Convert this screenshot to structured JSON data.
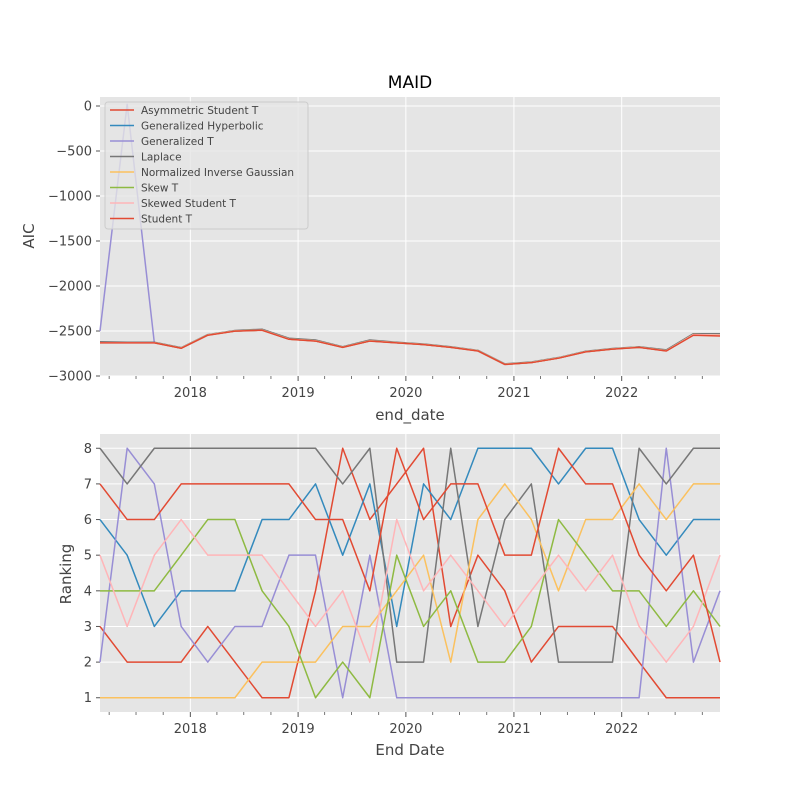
{
  "chart_data": [
    {
      "type": "line",
      "title": "MAID",
      "xlabel": "end_date",
      "ylabel": "AIC",
      "ylim": [
        -3000,
        100
      ],
      "xlim": [
        "2017-03-01",
        "2022-11-30"
      ],
      "x_ticks": [
        {
          "date": "2018-01-01",
          "label": "2018"
        },
        {
          "date": "2019-01-01",
          "label": "2019"
        },
        {
          "date": "2020-01-01",
          "label": "2020"
        },
        {
          "date": "2021-01-01",
          "label": "2021"
        },
        {
          "date": "2022-01-01",
          "label": "2022"
        }
      ],
      "y_ticks": [
        {
          "value": 0,
          "label": "0"
        },
        {
          "value": -500,
          "label": "−500"
        },
        {
          "value": -1000,
          "label": "−1000"
        },
        {
          "value": -1500,
          "label": "−1500"
        },
        {
          "value": -2000,
          "label": "−2000"
        },
        {
          "value": -2500,
          "label": "−2500"
        },
        {
          "value": -3000,
          "label": "−3000"
        }
      ],
      "grid": true,
      "legend_position": "top-left",
      "x": [
        "2017-03-01",
        "2017-06-01",
        "2017-09-01",
        "2017-12-01",
        "2018-03-01",
        "2018-06-01",
        "2018-09-01",
        "2018-12-01",
        "2019-03-01",
        "2019-06-01",
        "2019-09-01",
        "2019-12-01",
        "2020-03-01",
        "2020-06-01",
        "2020-09-01",
        "2020-12-01",
        "2021-03-01",
        "2021-06-01",
        "2021-09-01",
        "2021-12-01",
        "2022-03-01",
        "2022-06-01",
        "2022-09-01",
        "2022-11-30"
      ],
      "series": [
        {
          "name": "Asymmetric Student T",
          "color": "#e24a33",
          "values": [
            -2630,
            -2630,
            -2630,
            -2690,
            -2545,
            -2500,
            -2490,
            -2590,
            -2610,
            -2680,
            -2610,
            -2630,
            -2650,
            -2680,
            -2720,
            -2870,
            -2850,
            -2800,
            -2730,
            -2700,
            -2680,
            -2720,
            -2540,
            -2545
          ]
        },
        {
          "name": "Generalized Hyperbolic",
          "color": "#348abd",
          "values": [
            -2630,
            -2630,
            -2630,
            -2690,
            -2545,
            -2500,
            -2490,
            -2590,
            -2610,
            -2680,
            -2610,
            -2630,
            -2650,
            -2680,
            -2720,
            -2870,
            -2850,
            -2800,
            -2730,
            -2700,
            -2680,
            -2720,
            -2540,
            -2545
          ]
        },
        {
          "name": "Generalized T",
          "color": "#988ed5",
          "values": [
            -2500,
            20,
            -2630,
            -2690,
            -2545,
            -2500,
            -2490,
            -2590,
            -2610,
            -2680,
            -2610,
            -2630,
            -2650,
            -2680,
            -2720,
            -2870,
            -2850,
            -2800,
            -2730,
            -2700,
            -2680,
            -2720,
            -2540,
            -2545
          ]
        },
        {
          "name": "Laplace",
          "color": "#777777",
          "values": [
            -2620,
            -2625,
            -2625,
            -2685,
            -2540,
            -2495,
            -2480,
            -2580,
            -2600,
            -2675,
            -2600,
            -2625,
            -2645,
            -2675,
            -2715,
            -2865,
            -2845,
            -2795,
            -2725,
            -2695,
            -2675,
            -2710,
            -2530,
            -2530
          ]
        },
        {
          "name": "Normalized Inverse Gaussian",
          "color": "#fbc15e",
          "values": [
            -2630,
            -2630,
            -2630,
            -2690,
            -2545,
            -2500,
            -2490,
            -2590,
            -2610,
            -2680,
            -2610,
            -2630,
            -2650,
            -2680,
            -2720,
            -2870,
            -2850,
            -2800,
            -2730,
            -2700,
            -2680,
            -2720,
            -2540,
            -2545
          ]
        },
        {
          "name": "Skew T",
          "color": "#8eba42",
          "values": [
            -2630,
            -2630,
            -2630,
            -2690,
            -2545,
            -2500,
            -2490,
            -2590,
            -2610,
            -2680,
            -2610,
            -2630,
            -2650,
            -2680,
            -2720,
            -2870,
            -2850,
            -2800,
            -2730,
            -2700,
            -2680,
            -2720,
            -2540,
            -2545
          ]
        },
        {
          "name": "Skewed Student T",
          "color": "#ffb5b8",
          "values": [
            -2630,
            -2630,
            -2630,
            -2690,
            -2545,
            -2500,
            -2490,
            -2590,
            -2610,
            -2680,
            -2610,
            -2630,
            -2650,
            -2680,
            -2720,
            -2870,
            -2850,
            -2800,
            -2730,
            -2700,
            -2680,
            -2720,
            -2540,
            -2545
          ]
        },
        {
          "name": "Student T",
          "color": "#e24a33",
          "values": [
            -2632,
            -2632,
            -2632,
            -2692,
            -2547,
            -2502,
            -2492,
            -2592,
            -2612,
            -2682,
            -2612,
            -2632,
            -2652,
            -2682,
            -2722,
            -2872,
            -2852,
            -2802,
            -2732,
            -2702,
            -2682,
            -2722,
            -2547,
            -2555
          ]
        }
      ]
    },
    {
      "type": "line",
      "title": "",
      "xlabel": "End Date",
      "ylabel": "Ranking",
      "ylim": [
        0.6,
        8.4
      ],
      "xlim": [
        "2017-03-01",
        "2022-11-30"
      ],
      "x_ticks": [
        {
          "date": "2018-01-01",
          "label": "2018"
        },
        {
          "date": "2019-01-01",
          "label": "2019"
        },
        {
          "date": "2020-01-01",
          "label": "2020"
        },
        {
          "date": "2021-01-01",
          "label": "2021"
        },
        {
          "date": "2022-01-01",
          "label": "2022"
        }
      ],
      "y_ticks": [
        {
          "value": 1,
          "label": "1"
        },
        {
          "value": 2,
          "label": "2"
        },
        {
          "value": 3,
          "label": "3"
        },
        {
          "value": 4,
          "label": "4"
        },
        {
          "value": 5,
          "label": "5"
        },
        {
          "value": 6,
          "label": "6"
        },
        {
          "value": 7,
          "label": "7"
        },
        {
          "value": 8,
          "label": "8"
        }
      ],
      "grid": true,
      "x": [
        "2017-03-01",
        "2017-06-01",
        "2017-09-01",
        "2017-12-01",
        "2018-03-01",
        "2018-06-01",
        "2018-09-01",
        "2018-12-01",
        "2019-03-01",
        "2019-06-01",
        "2019-09-01",
        "2019-12-01",
        "2020-03-01",
        "2020-06-01",
        "2020-09-01",
        "2020-12-01",
        "2021-03-01",
        "2021-06-01",
        "2021-09-01",
        "2021-12-01",
        "2022-03-01",
        "2022-06-01",
        "2022-09-01",
        "2022-11-30"
      ],
      "series": [
        {
          "name": "Asymmetric Student T",
          "color": "#e24a33",
          "values": [
            3,
            2,
            2,
            2,
            3,
            2,
            1,
            1,
            4,
            8,
            6,
            7,
            8,
            3,
            5,
            4,
            2,
            3,
            3,
            3,
            2,
            1,
            1,
            1
          ]
        },
        {
          "name": "Generalized Hyperbolic",
          "color": "#348abd",
          "values": [
            6,
            5,
            3,
            4,
            4,
            4,
            6,
            6,
            7,
            5,
            7,
            3,
            7,
            6,
            8,
            8,
            8,
            7,
            8,
            8,
            6,
            5,
            6,
            6
          ]
        },
        {
          "name": "Generalized T",
          "color": "#988ed5",
          "values": [
            2,
            8,
            7,
            3,
            2,
            3,
            3,
            5,
            5,
            1,
            5,
            1,
            1,
            1,
            1,
            1,
            1,
            1,
            1,
            1,
            1,
            8,
            2,
            4
          ]
        },
        {
          "name": "Laplace",
          "color": "#777777",
          "values": [
            8,
            7,
            8,
            8,
            8,
            8,
            8,
            8,
            8,
            7,
            8,
            2,
            2,
            8,
            3,
            6,
            7,
            2,
            2,
            2,
            8,
            7,
            8,
            8
          ]
        },
        {
          "name": "Normalized Inverse Gaussian",
          "color": "#fbc15e",
          "values": [
            1,
            1,
            1,
            1,
            1,
            1,
            2,
            2,
            2,
            3,
            3,
            4,
            5,
            2,
            6,
            7,
            6,
            4,
            6,
            6,
            7,
            6,
            7,
            7
          ]
        },
        {
          "name": "Skew T",
          "color": "#8eba42",
          "values": [
            4,
            4,
            4,
            5,
            6,
            6,
            4,
            3,
            1,
            2,
            1,
            5,
            3,
            4,
            2,
            2,
            3,
            6,
            5,
            4,
            4,
            3,
            4,
            3
          ]
        },
        {
          "name": "Skewed Student T",
          "color": "#ffb5b8",
          "values": [
            5,
            3,
            5,
            6,
            5,
            5,
            5,
            4,
            3,
            4,
            2,
            6,
            4,
            5,
            4,
            3,
            4,
            5,
            4,
            5,
            3,
            2,
            3,
            5
          ]
        },
        {
          "name": "Student T",
          "color": "#e24a33",
          "values": [
            7,
            6,
            6,
            7,
            7,
            7,
            7,
            7,
            6,
            6,
            4,
            8,
            6,
            7,
            7,
            5,
            5,
            8,
            7,
            7,
            5,
            4,
            5,
            2
          ]
        }
      ]
    }
  ]
}
